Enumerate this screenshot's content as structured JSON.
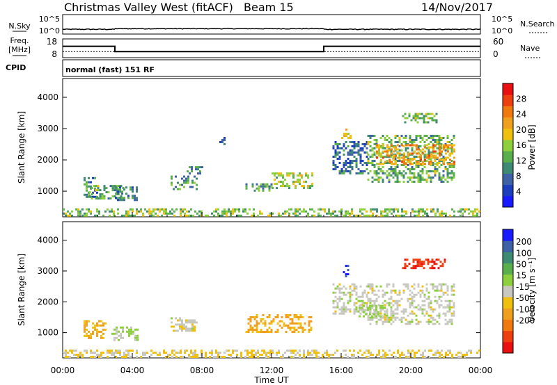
{
  "header": {
    "station": "Christmas Valley West (fitACF)",
    "beam": "Beam 15",
    "date": "14/Nov/2017"
  },
  "noise_panel": {
    "left_label": "N.Sky",
    "right_label": "N.Search",
    "left_ticks": [
      "10^5",
      "10^0"
    ],
    "right_ticks": [
      "10^5",
      "10^0"
    ]
  },
  "freq_panel": {
    "left_label_1": "Freq.",
    "left_label_2": "[MHz]",
    "right_label": "Nave",
    "left_ticks": [
      "18",
      "8"
    ],
    "right_ticks": [
      "60",
      "0"
    ],
    "freq_mhz": [
      {
        "from_h": 0,
        "to_h": 3.0,
        "value": 14.5
      },
      {
        "from_h": 3.0,
        "to_h": 15.0,
        "value": 10.5
      },
      {
        "from_h": 15.0,
        "to_h": 24.0,
        "value": 14.5
      }
    ],
    "nave": 22
  },
  "cpid": {
    "label": "CPID",
    "mode": "normal (fast) 151 RF"
  },
  "chart_data": [
    {
      "type": "heatmap",
      "name": "power",
      "ylabel": "Slant Range [km]",
      "xlabel": "Time UT",
      "x_ticks": [
        "00:00",
        "04:00",
        "08:00",
        "12:00",
        "16:00",
        "20:00",
        "00:00"
      ],
      "xlim_hours": [
        0,
        24
      ],
      "y_ticks": [
        "1000",
        "2000",
        "3000",
        "4000"
      ],
      "ylim": [
        180,
        4600
      ],
      "colorbar": {
        "label": "Power [dB]",
        "ticks": [
          "4",
          "8",
          "12",
          "16",
          "20",
          "24",
          "28"
        ],
        "colors": [
          "#1a1aff",
          "#1d3fbe",
          "#3f62a6",
          "#3f8a72",
          "#5aae4c",
          "#8ecf3e",
          "#f0c010",
          "#f0a020",
          "#f07a10",
          "#ec4010",
          "#e81010"
        ],
        "range": [
          0,
          32
        ]
      },
      "regions": [
        {
          "x0": 1.2,
          "x1": 2.0,
          "y0": 850,
          "y1": 1450,
          "level": 10
        },
        {
          "x0": 1.5,
          "x1": 3.5,
          "y0": 750,
          "y1": 1200,
          "level": 13
        },
        {
          "x0": 3.0,
          "x1": 4.3,
          "y0": 700,
          "y1": 1150,
          "level": 9
        },
        {
          "x0": 6.2,
          "x1": 7.7,
          "y0": 1050,
          "y1": 1500,
          "level": 11
        },
        {
          "x0": 7.0,
          "x1": 8.0,
          "y0": 1600,
          "y1": 1800,
          "level": 9
        },
        {
          "x0": 10.5,
          "x1": 12.0,
          "y0": 1050,
          "y1": 1250,
          "level": 12
        },
        {
          "x0": 12.0,
          "x1": 14.3,
          "y0": 1100,
          "y1": 1600,
          "level": 16
        },
        {
          "x0": 15.5,
          "x1": 17.5,
          "y0": 1600,
          "y1": 2600,
          "level": 8
        },
        {
          "x0": 16.0,
          "x1": 16.5,
          "y0": 2700,
          "y1": 3000,
          "level": 18
        },
        {
          "x0": 17.5,
          "x1": 22.5,
          "y0": 1300,
          "y1": 2800,
          "level": 13
        },
        {
          "x0": 18.0,
          "x1": 22.5,
          "y0": 1900,
          "y1": 2500,
          "level": 22
        },
        {
          "x0": 19.5,
          "x1": 21.5,
          "y0": 3200,
          "y1": 3500,
          "level": 14
        },
        {
          "x0": 9.0,
          "x1": 9.3,
          "y0": 2500,
          "y1": 2800,
          "level": 9
        },
        {
          "x0": 0,
          "x1": 24,
          "y0": 200,
          "y1": 450,
          "level": 15
        }
      ]
    },
    {
      "type": "heatmap",
      "name": "velocity",
      "ylabel": "Slant Range [km]",
      "xlabel": "Time UT",
      "x_ticks": [
        "00:00",
        "04:00",
        "08:00",
        "12:00",
        "16:00",
        "20:00",
        "00:00"
      ],
      "xlim_hours": [
        0,
        24
      ],
      "y_ticks": [
        "1000",
        "2000",
        "3000",
        "4000"
      ],
      "ylim": [
        180,
        4600
      ],
      "colorbar": {
        "label": "Velocity [m s⁻¹]",
        "ticks": [
          "200",
          "100",
          "50",
          "15",
          "-15",
          "-50",
          "-100",
          "-200"
        ],
        "colors": [
          "#1a1aff",
          "#3f62a6",
          "#3f8a72",
          "#5aae4c",
          "#8ecf3e",
          "#c8c8c0",
          "#f0c010",
          "#f0a020",
          "#f07a10",
          "#ec4010",
          "#e81010"
        ],
        "range": [
          -250,
          250
        ]
      },
      "regions": [
        {
          "x0": 1.2,
          "x1": 2.5,
          "y0": 850,
          "y1": 1400,
          "level": -70
        },
        {
          "x0": 2.8,
          "x1": 4.3,
          "y0": 750,
          "y1": 1200,
          "level": 30
        },
        {
          "x0": 6.2,
          "x1": 7.7,
          "y0": 1050,
          "y1": 1500,
          "level": -5
        },
        {
          "x0": 10.5,
          "x1": 14.3,
          "y0": 1050,
          "y1": 1600,
          "level": -70
        },
        {
          "x0": 15.5,
          "x1": 17.5,
          "y0": 1600,
          "y1": 2600,
          "level": 0
        },
        {
          "x0": 16.1,
          "x1": 16.4,
          "y0": 2800,
          "y1": 3200,
          "level": 220
        },
        {
          "x0": 17.5,
          "x1": 22.5,
          "y0": 1300,
          "y1": 2600,
          "level": 2
        },
        {
          "x0": 17.0,
          "x1": 18.5,
          "y0": 1500,
          "y1": 1900,
          "level": 30
        },
        {
          "x0": 19.5,
          "x1": 22.0,
          "y0": 3100,
          "y1": 3400,
          "level": -200
        },
        {
          "x0": 0,
          "x1": 24,
          "y0": 200,
          "y1": 450,
          "level": -30
        }
      ]
    }
  ]
}
